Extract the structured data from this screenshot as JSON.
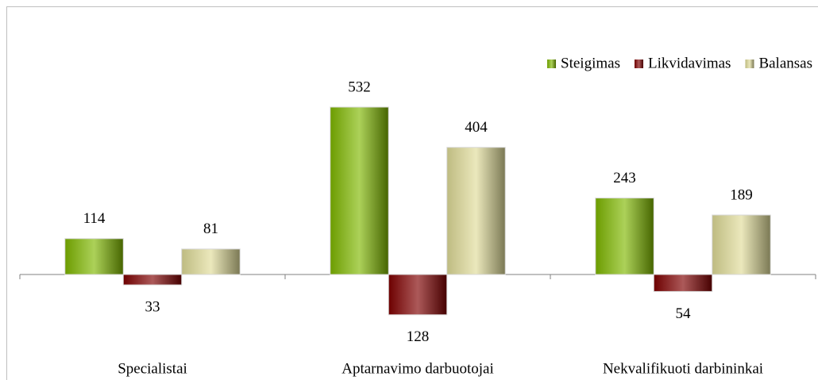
{
  "chart_data": {
    "type": "bar",
    "categories": [
      "Specialistai",
      "Aptarnavimo darbuotojai",
      "Nekvalifikuoti darbininkai"
    ],
    "series": [
      {
        "name": "Steigimas",
        "color": "#7fb800",
        "values": [
          114,
          532,
          243
        ]
      },
      {
        "name": "Likvidavimas",
        "color": "#800000",
        "values": [
          -33,
          -128,
          -54
        ],
        "value_labels": [
          "33",
          "128",
          "54"
        ]
      },
      {
        "name": "Balansas",
        "color": "#e0dc98",
        "values": [
          81,
          404,
          189
        ]
      }
    ],
    "ylim": [
      -300,
      800
    ],
    "legend": "top-right"
  }
}
